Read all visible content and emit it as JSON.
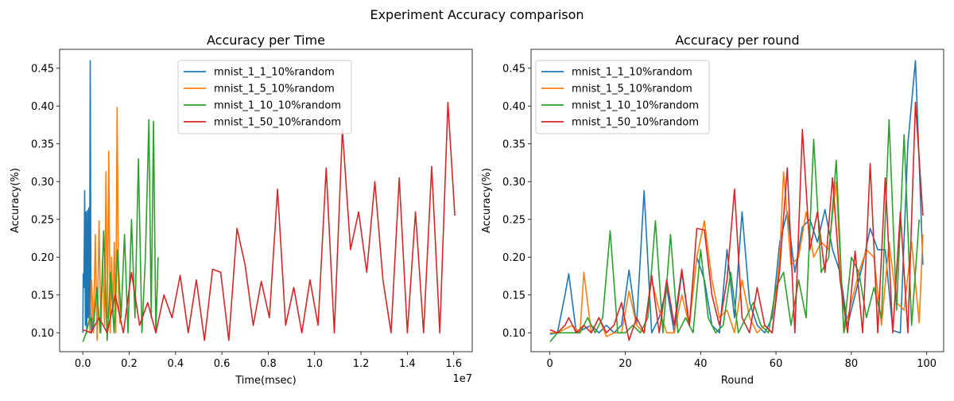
{
  "figure": {
    "suptitle": "Experiment Accuracy comparison"
  },
  "chart_data": [
    {
      "type": "line",
      "title": "Accuracy per Time",
      "xlabel": "Time(msec)",
      "ylabel": "Accuracy(%)",
      "x_offset_label": "1e7",
      "xlim": [
        -1000000,
        16800000
      ],
      "ylim": [
        0.075,
        0.475
      ],
      "xticks": [
        0,
        2000000,
        4000000,
        6000000,
        8000000,
        10000000,
        12000000,
        14000000,
        16000000
      ],
      "xtick_labels": [
        "0.0",
        "0.2",
        "0.4",
        "0.6",
        "0.8",
        "1.0",
        "1.2",
        "1.4",
        "1.6"
      ],
      "yticks": [
        0.1,
        0.15,
        0.2,
        0.25,
        0.3,
        0.35,
        0.4,
        0.45
      ],
      "ytick_labels": [
        "0.10",
        "0.15",
        "0.20",
        "0.25",
        "0.30",
        "0.35",
        "0.40",
        "0.45"
      ],
      "legend": "upper center",
      "series": [
        {
          "name": "mnist_1_1_10%random",
          "color": "#1f77b4",
          "x": [
            0,
            20000,
            50000,
            80000,
            110000,
            140000,
            170000,
            200000,
            230000,
            260000,
            290000,
            320000,
            350000,
            380000,
            410000
          ],
          "y": [
            0.1,
            0.178,
            0.16,
            0.288,
            0.11,
            0.26,
            0.1,
            0.262,
            0.12,
            0.265,
            0.11,
            0.46,
            0.13,
            0.1,
            0.12
          ]
        },
        {
          "name": "mnist_1_5_10%random",
          "color": "#ff7f0e",
          "x": [
            300000,
            380000,
            460000,
            540000,
            620000,
            700000,
            780000,
            860000,
            940000,
            1000000,
            1060000,
            1120000,
            1180000,
            1240000,
            1300000,
            1360000,
            1420000,
            1480000,
            1540000,
            1600000
          ],
          "y": [
            0.1,
            0.17,
            0.1,
            0.23,
            0.09,
            0.248,
            0.1,
            0.2,
            0.11,
            0.313,
            0.12,
            0.34,
            0.1,
            0.2,
            0.12,
            0.22,
            0.1,
            0.398,
            0.15,
            0.112
          ]
        },
        {
          "name": "mnist_1_10_10%random",
          "color": "#2ca02c",
          "x": [
            0,
            150000,
            300000,
            450000,
            600000,
            750000,
            900000,
            1050000,
            1200000,
            1350000,
            1500000,
            1650000,
            1800000,
            1950000,
            2100000,
            2250000,
            2400000,
            2550000,
            2700000,
            2850000,
            2950000,
            3050000,
            3150000,
            3250000
          ],
          "y": [
            0.088,
            0.1,
            0.12,
            0.105,
            0.16,
            0.1,
            0.235,
            0.09,
            0.18,
            0.1,
            0.21,
            0.12,
            0.23,
            0.1,
            0.25,
            0.12,
            0.33,
            0.1,
            0.2,
            0.382,
            0.12,
            0.38,
            0.1,
            0.2
          ]
        },
        {
          "name": "mnist_1_50_10%random",
          "color": "#d62728",
          "x": [
            0,
            350000,
            700000,
            1050000,
            1400000,
            1750000,
            2100000,
            2450000,
            2800000,
            3150000,
            3500000,
            3850000,
            4200000,
            4550000,
            4900000,
            5250000,
            5600000,
            5950000,
            6300000,
            6650000,
            7000000,
            7350000,
            7700000,
            8050000,
            8400000,
            8750000,
            9100000,
            9450000,
            9800000,
            10150000,
            10500000,
            10850000,
            11200000,
            11550000,
            11900000,
            12250000,
            12600000,
            12950000,
            13300000,
            13650000,
            14000000,
            14350000,
            14700000,
            15050000,
            15400000,
            15750000,
            16050000
          ],
          "y": [
            0.104,
            0.1,
            0.12,
            0.1,
            0.15,
            0.1,
            0.18,
            0.11,
            0.14,
            0.1,
            0.15,
            0.12,
            0.176,
            0.1,
            0.17,
            0.09,
            0.184,
            0.18,
            0.09,
            0.238,
            0.19,
            0.11,
            0.168,
            0.12,
            0.29,
            0.11,
            0.16,
            0.1,
            0.17,
            0.11,
            0.318,
            0.1,
            0.369,
            0.21,
            0.26,
            0.18,
            0.3,
            0.17,
            0.1,
            0.305,
            0.1,
            0.26,
            0.1,
            0.32,
            0.1,
            0.405,
            0.255
          ]
        }
      ]
    },
    {
      "type": "line",
      "title": "Accuracy per round",
      "xlabel": "Round",
      "ylabel": "Accuracy(%)",
      "xlim": [
        -5,
        104.5
      ],
      "ylim": [
        0.075,
        0.475
      ],
      "xticks": [
        0,
        20,
        40,
        60,
        80,
        100
      ],
      "xtick_labels": [
        "0",
        "20",
        "40",
        "60",
        "80",
        "100"
      ],
      "yticks": [
        0.1,
        0.15,
        0.2,
        0.25,
        0.3,
        0.35,
        0.4,
        0.45
      ],
      "ytick_labels": [
        "0.10",
        "0.15",
        "0.20",
        "0.25",
        "0.30",
        "0.35",
        "0.40",
        "0.45"
      ],
      "legend": "upper left",
      "series": [
        {
          "name": "mnist_1_1_10%random",
          "color": "#1f77b4",
          "x": [
            0,
            2,
            4,
            5,
            7,
            9,
            11,
            13,
            15,
            17,
            19,
            21,
            23,
            25,
            27,
            29,
            31,
            33,
            35,
            37,
            39,
            41,
            43,
            45,
            47,
            49,
            51,
            53,
            55,
            57,
            59,
            61,
            63,
            65,
            67,
            69,
            71,
            73,
            75,
            77,
            79,
            81,
            83,
            85,
            87,
            89,
            91,
            93,
            95,
            97,
            99
          ],
          "y": [
            0.098,
            0.1,
            0.15,
            0.178,
            0.1,
            0.105,
            0.11,
            0.1,
            0.11,
            0.1,
            0.11,
            0.183,
            0.11,
            0.288,
            0.1,
            0.12,
            0.16,
            0.1,
            0.18,
            0.11,
            0.2,
            0.17,
            0.11,
            0.1,
            0.21,
            0.12,
            0.26,
            0.14,
            0.11,
            0.1,
            0.12,
            0.22,
            0.26,
            0.18,
            0.24,
            0.25,
            0.22,
            0.263,
            0.21,
            0.18,
            0.11,
            0.15,
            0.19,
            0.238,
            0.21,
            0.21,
            0.103,
            0.1,
            0.35,
            0.46,
            0.19
          ]
        },
        {
          "name": "mnist_1_5_10%random",
          "color": "#ff7f0e",
          "x": [
            0,
            2,
            4,
            6,
            8,
            9,
            11,
            13,
            15,
            17,
            19,
            21,
            23,
            25,
            27,
            29,
            31,
            33,
            35,
            37,
            39,
            41,
            43,
            45,
            47,
            49,
            51,
            53,
            55,
            57,
            59,
            61,
            62,
            64,
            66,
            68,
            70,
            72,
            74,
            76,
            78,
            80,
            82,
            84,
            86,
            88,
            90,
            92,
            94,
            96,
            98,
            99
          ],
          "y": [
            0.1,
            0.1,
            0.105,
            0.11,
            0.1,
            0.18,
            0.1,
            0.12,
            0.095,
            0.1,
            0.1,
            0.155,
            0.11,
            0.1,
            0.17,
            0.13,
            0.1,
            0.1,
            0.15,
            0.11,
            0.2,
            0.248,
            0.17,
            0.12,
            0.13,
            0.1,
            0.17,
            0.12,
            0.1,
            0.11,
            0.1,
            0.2,
            0.313,
            0.19,
            0.2,
            0.26,
            0.2,
            0.22,
            0.21,
            0.3,
            0.1,
            0.14,
            0.18,
            0.21,
            0.2,
            0.11,
            0.22,
            0.14,
            0.13,
            0.22,
            0.113,
            0.23
          ]
        },
        {
          "name": "mnist_1_10_10%random",
          "color": "#2ca02c",
          "x": [
            0,
            2,
            4,
            6,
            8,
            10,
            12,
            14,
            16,
            18,
            20,
            22,
            24,
            26,
            28,
            30,
            32,
            34,
            36,
            38,
            40,
            42,
            44,
            46,
            48,
            50,
            52,
            54,
            56,
            58,
            60,
            62,
            64,
            66,
            68,
            70,
            72,
            74,
            76,
            78,
            80,
            82,
            84,
            86,
            88,
            90,
            92,
            94,
            96,
            98
          ],
          "y": [
            0.088,
            0.1,
            0.1,
            0.1,
            0.1,
            0.12,
            0.1,
            0.12,
            0.235,
            0.1,
            0.1,
            0.11,
            0.1,
            0.12,
            0.248,
            0.1,
            0.23,
            0.1,
            0.12,
            0.1,
            0.21,
            0.12,
            0.1,
            0.11,
            0.18,
            0.1,
            0.12,
            0.14,
            0.11,
            0.1,
            0.16,
            0.18,
            0.11,
            0.17,
            0.12,
            0.356,
            0.18,
            0.2,
            0.328,
            0.1,
            0.2,
            0.18,
            0.12,
            0.16,
            0.12,
            0.382,
            0.13,
            0.362,
            0.11,
            0.25
          ]
        },
        {
          "name": "mnist_1_50_10%random",
          "color": "#d62728",
          "x": [
            0,
            2,
            4,
            5,
            7,
            9,
            11,
            13,
            15,
            17,
            19,
            21,
            23,
            25,
            27,
            29,
            31,
            33,
            35,
            37,
            39,
            41,
            43,
            45,
            47,
            49,
            51,
            53,
            55,
            57,
            59,
            61,
            63,
            65,
            67,
            69,
            71,
            73,
            75,
            77,
            79,
            81,
            83,
            85,
            87,
            89,
            91,
            93,
            95,
            97,
            99
          ],
          "y": [
            0.104,
            0.1,
            0.11,
            0.12,
            0.1,
            0.11,
            0.1,
            0.12,
            0.1,
            0.11,
            0.14,
            0.09,
            0.12,
            0.1,
            0.176,
            0.1,
            0.17,
            0.11,
            0.184,
            0.11,
            0.238,
            0.236,
            0.15,
            0.11,
            0.17,
            0.29,
            0.12,
            0.1,
            0.16,
            0.11,
            0.1,
            0.185,
            0.318,
            0.1,
            0.369,
            0.21,
            0.26,
            0.18,
            0.305,
            0.17,
            0.1,
            0.208,
            0.1,
            0.324,
            0.1,
            0.305,
            0.1,
            0.26,
            0.1,
            0.405,
            0.255
          ]
        }
      ]
    }
  ]
}
